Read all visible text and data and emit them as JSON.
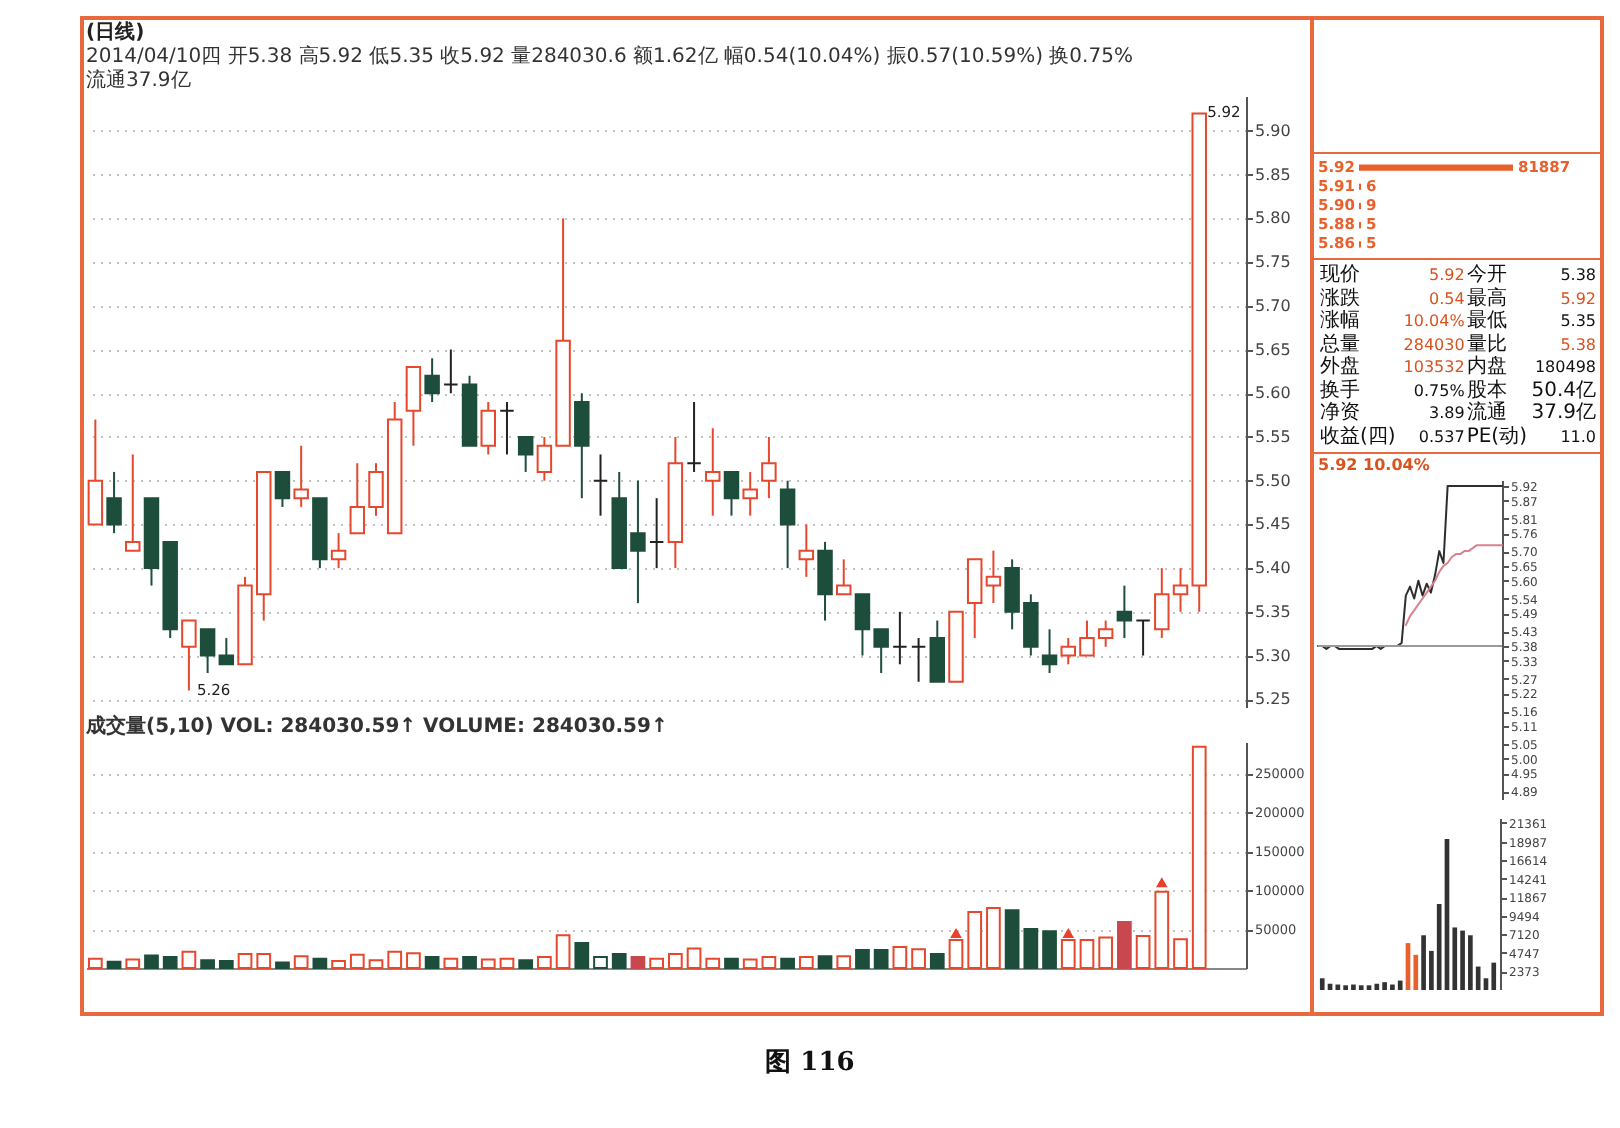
{
  "chart_data": [
    {
      "type": "candlestick",
      "title": "(日线)",
      "subtitle": "2014/04/10四 开5.38 高5.92 低5.35 收5.92 量284030.6 额1.62亿 幅0.54(10.04%) 振0.57(10.59%) 换0.75% 流通37.9亿",
      "categories": [
        null,
        null,
        null,
        null,
        null,
        null,
        null,
        null,
        null,
        null,
        null,
        null,
        null,
        null,
        null,
        null,
        null,
        null,
        null,
        null,
        null,
        null,
        null,
        null,
        null,
        null,
        null,
        null,
        null,
        null,
        null,
        null,
        null,
        null,
        null,
        null,
        null,
        null,
        null,
        null,
        null,
        null,
        null,
        null,
        null,
        null,
        null,
        null,
        null,
        null,
        null,
        null,
        null,
        null,
        null,
        null,
        null,
        null,
        null,
        null
      ],
      "ohlc": [
        [
          5.45,
          5.57,
          5.45,
          5.5
        ],
        [
          5.48,
          5.51,
          5.44,
          5.45
        ],
        [
          5.42,
          5.53,
          5.42,
          5.43
        ],
        [
          5.48,
          5.48,
          5.38,
          5.4
        ],
        [
          5.43,
          5.43,
          5.32,
          5.33
        ],
        [
          5.31,
          5.34,
          5.26,
          5.34
        ],
        [
          5.33,
          5.33,
          5.28,
          5.3
        ],
        [
          5.3,
          5.32,
          5.29,
          5.29
        ],
        [
          5.29,
          5.39,
          5.29,
          5.38
        ],
        [
          5.37,
          5.51,
          5.34,
          5.51
        ],
        [
          5.51,
          5.51,
          5.47,
          5.48
        ],
        [
          5.48,
          5.54,
          5.47,
          5.49
        ],
        [
          5.48,
          5.48,
          5.4,
          5.41
        ],
        [
          5.41,
          5.44,
          5.4,
          5.42
        ],
        [
          5.44,
          5.52,
          5.44,
          5.47
        ],
        [
          5.47,
          5.52,
          5.46,
          5.51
        ],
        [
          5.44,
          5.59,
          5.44,
          5.57
        ],
        [
          5.58,
          5.63,
          5.54,
          5.63
        ],
        [
          5.62,
          5.64,
          5.59,
          5.6
        ],
        [
          5.61,
          5.65,
          5.6,
          5.61
        ],
        [
          5.61,
          5.62,
          5.54,
          5.54
        ],
        [
          5.54,
          5.59,
          5.53,
          5.58
        ],
        [
          5.58,
          5.59,
          5.53,
          5.58
        ],
        [
          5.55,
          5.55,
          5.51,
          5.53
        ],
        [
          5.51,
          5.55,
          5.5,
          5.54
        ],
        [
          5.54,
          5.8,
          5.54,
          5.66
        ],
        [
          5.59,
          5.6,
          5.48,
          5.54
        ],
        [
          5.5,
          5.53,
          5.46,
          5.5
        ],
        [
          5.48,
          5.51,
          5.4,
          5.4
        ],
        [
          5.44,
          5.5,
          5.36,
          5.42
        ],
        [
          5.43,
          5.48,
          5.4,
          5.43
        ],
        [
          5.43,
          5.55,
          5.4,
          5.52
        ],
        [
          5.52,
          5.59,
          5.51,
          5.52
        ],
        [
          5.5,
          5.56,
          5.46,
          5.51
        ],
        [
          5.51,
          5.51,
          5.46,
          5.48
        ],
        [
          5.48,
          5.51,
          5.46,
          5.49
        ],
        [
          5.5,
          5.55,
          5.48,
          5.52
        ],
        [
          5.49,
          5.5,
          5.4,
          5.45
        ],
        [
          5.41,
          5.45,
          5.39,
          5.42
        ],
        [
          5.42,
          5.43,
          5.34,
          5.37
        ],
        [
          5.37,
          5.41,
          5.37,
          5.38
        ],
        [
          5.37,
          5.37,
          5.3,
          5.33
        ],
        [
          5.33,
          5.33,
          5.28,
          5.31
        ],
        [
          5.31,
          5.35,
          5.29,
          5.31
        ],
        [
          5.31,
          5.32,
          5.27,
          5.31
        ],
        [
          5.32,
          5.34,
          5.27,
          5.27
        ],
        [
          5.27,
          5.35,
          5.27,
          5.35
        ],
        [
          5.36,
          5.41,
          5.32,
          5.41
        ],
        [
          5.38,
          5.42,
          5.36,
          5.39
        ],
        [
          5.4,
          5.41,
          5.33,
          5.35
        ],
        [
          5.36,
          5.37,
          5.3,
          5.31
        ],
        [
          5.3,
          5.33,
          5.28,
          5.29
        ],
        [
          5.3,
          5.32,
          5.29,
          5.31
        ],
        [
          5.3,
          5.34,
          5.3,
          5.32
        ],
        [
          5.32,
          5.34,
          5.31,
          5.33
        ],
        [
          5.35,
          5.38,
          5.32,
          5.34
        ],
        [
          5.34,
          5.34,
          5.3,
          5.34
        ],
        [
          5.33,
          5.4,
          5.32,
          5.37
        ],
        [
          5.37,
          5.4,
          5.35,
          5.38
        ],
        [
          5.38,
          5.92,
          5.35,
          5.92
        ]
      ],
      "colors": [
        "#e5482d",
        "#1d4d3b",
        "#e5482d",
        "#1d4d3b",
        "#1d4d3b",
        "#e5482d",
        "#1d4d3b",
        "#1d4d3b",
        "#e5482d",
        "#e5482d",
        "#1d4d3b",
        "#e5482d",
        "#1d4d3b",
        "#e5482d",
        "#e5482d",
        "#e5482d",
        "#e5482d",
        "#e5482d",
        "#1d4d3b",
        "#222222",
        "#1d4d3b",
        "#e5482d",
        "#222222",
        "#1d4d3b",
        "#e5482d",
        "#e5482d",
        "#1d4d3b",
        "#222222",
        "#1d4d3b",
        "#1d4d3b",
        "#222222",
        "#e5482d",
        "#222222",
        "#e5482d",
        "#1d4d3b",
        "#e5482d",
        "#e5482d",
        "#1d4d3b",
        "#e5482d",
        "#1d4d3b",
        "#e5482d",
        "#1d4d3b",
        "#1d4d3b",
        "#222222",
        "#222222",
        "#1d4d3b",
        "#e5482d",
        "#e5482d",
        "#e5482d",
        "#1d4d3b",
        "#1d4d3b",
        "#1d4d3b",
        "#e5482d",
        "#e5482d",
        "#e5482d",
        "#1d4d3b",
        "#222222",
        "#e5482d",
        "#e5482d",
        "#e5482d"
      ],
      "ylim": [
        5.24,
        5.94
      ],
      "yticks": [
        5.25,
        {
          "value": 5.3,
          "label": "5.30"
        },
        5.35,
        {
          "value": 5.4,
          "label": "5.40"
        },
        5.45,
        {
          "value": 5.5,
          "label": "5.50"
        },
        5.55,
        {
          "value": 5.6,
          "label": "5.60"
        },
        5.65,
        {
          "value": 5.7,
          "label": "5.70"
        },
        5.75,
        {
          "value": 5.8,
          "label": "5.80"
        },
        5.85,
        {
          "value": 5.9,
          "label": "5.90"
        }
      ],
      "grid": "y",
      "tick_labels": "y",
      "annotations": [
        "图 116",
        "5.92",
        "5.26"
      ]
    },
    {
      "type": "bar",
      "title": "成交量(5,10) VOL: 284030.59↑ VOLUME: 284030.59↑",
      "categories": [
        null,
        null,
        null,
        null,
        null,
        null,
        null,
        null,
        null,
        null,
        null,
        null,
        null,
        null,
        null,
        null,
        null,
        null,
        null,
        null,
        null,
        null,
        null,
        null,
        null,
        null,
        null,
        null,
        null,
        null,
        null,
        null,
        null,
        null,
        null,
        null,
        null,
        null,
        null,
        null,
        null,
        null,
        null,
        null,
        null,
        null,
        null,
        null,
        null,
        null,
        null,
        null,
        null,
        null,
        null,
        null,
        null,
        null,
        null,
        null
      ],
      "series": [
        {
          "values": [
            12000,
            8000,
            11000,
            16000,
            14000,
            21000,
            10000,
            9000,
            18000,
            18000,
            7000,
            15000,
            12000,
            9000,
            17000,
            10000,
            21000,
            19000,
            14000,
            12000,
            14000,
            11000,
            12000,
            10000,
            14000,
            42000,
            32000,
            14000,
            18000,
            14000,
            12000,
            18000,
            25000,
            12000,
            12000,
            11000,
            14000,
            12000,
            14000,
            15000,
            15000,
            23000,
            23000,
            27000,
            24000,
            18000,
            36000,
            72000,
            77000,
            74000,
            50000,
            47000,
            36000,
            36000,
            39000,
            59000,
            41000,
            98000,
            37000,
            284030.59
          ],
          "colors": [
            "#e5482d",
            "#1d4d3b",
            "#e5482d",
            "#1d4d3b",
            "#1d4d3b",
            "#e5482d",
            "#1d4d3b",
            "#1d4d3b",
            "#e5482d",
            "#e5482d",
            "#1d4d3b",
            "#e5482d",
            "#1d4d3b",
            "#e5482d",
            "#e5482d",
            "#e5482d",
            "#e5482d",
            "#e5482d",
            "#1d4d3b",
            "#e5482d",
            "#1d4d3b",
            "#e5482d",
            "#e5482d",
            "#1d4d3b",
            "#e5482d",
            "#e5482d",
            "#1d4d3b",
            "#1d4d3b",
            "#1d4d3b",
            "#c9474f",
            "#e5482d",
            "#e5482d",
            "#e5482d",
            "#e5482d",
            "#1d4d3b",
            "#e5482d",
            "#e5482d",
            "#1d4d3b",
            "#e5482d",
            "#1d4d3b",
            "#e5482d",
            "#1d4d3b",
            "#1d4d3b",
            "#e5482d",
            "#e5482d",
            "#1d4d3b",
            "#e5482d",
            "#e5482d",
            "#e5482d",
            "#1d4d3b",
            "#1d4d3b",
            "#1d4d3b",
            "#e5482d",
            "#e5482d",
            "#e5482d",
            "#c9474f",
            "#e5482d",
            "#e5482d",
            "#e5482d",
            "#e5482d"
          ]
        },
        {
          "type": "scatter",
          "marker": "triangle",
          "color": "#e8402a",
          "values": [
            null,
            null,
            null,
            null,
            null,
            null,
            null,
            null,
            null,
            null,
            null,
            null,
            null,
            null,
            null,
            null,
            null,
            null,
            null,
            null,
            null,
            null,
            null,
            null,
            null,
            null,
            null,
            null,
            null,
            null,
            null,
            null,
            null,
            null,
            null,
            null,
            null,
            null,
            null,
            null,
            null,
            null,
            null,
            null,
            null,
            null,
            45000,
            null,
            null,
            null,
            null,
            null,
            45000,
            null,
            null,
            null,
            null,
            110000,
            null,
            null
          ]
        }
      ],
      "ylim": [
        0,
        290000
      ],
      "yticks": [
        50000,
        100000,
        150000,
        200000,
        250000
      ],
      "grid": "y",
      "tick_labels": "y"
    },
    {
      "type": "bar",
      "orientation": "horizontal",
      "categories": [
        "5.92",
        "5.91",
        "5.90",
        "5.88",
        "5.86"
      ],
      "values": [
        81887,
        6,
        9,
        5,
        5
      ],
      "color": "#e8602c",
      "data_labels": true
    },
    {
      "type": "other",
      "annotations": [
        "现价",
        "5.92",
        "今开",
        "5.38",
        "涨跌",
        "0.54",
        "最高",
        "5.92",
        "涨幅",
        "10.04%",
        "最低",
        "5.35",
        "总量",
        "284030",
        "量比",
        "5.38",
        "外盘",
        "103532",
        "内盘",
        "180498",
        "换手",
        "0.75%",
        "股本",
        "50.4亿",
        "净资",
        "3.89",
        "流通",
        "37.9亿",
        "收益(四)",
        "0.537",
        "PE(动)",
        "11.0"
      ]
    },
    {
      "type": "line",
      "title": "5.92 10.04%",
      "categories": [
        null,
        null,
        null,
        null,
        null,
        null,
        null,
        null,
        null,
        null,
        null,
        null,
        null,
        null,
        null,
        null,
        null,
        null,
        null,
        null,
        null,
        null,
        null,
        null,
        null,
        null,
        null,
        null,
        null,
        null,
        null,
        null,
        null,
        null,
        null,
        null,
        null,
        null,
        null,
        null,
        null,
        null,
        null,
        null,
        null
      ],
      "series": [
        {
          "color": "#2e2e2e",
          "values": [
            5.38,
            5.38,
            5.37,
            5.38,
            5.38,
            5.37,
            5.37,
            5.37,
            5.37,
            5.37,
            5.37,
            5.37,
            5.37,
            5.37,
            5.38,
            5.37,
            5.38,
            5.38,
            5.38,
            5.38,
            5.39,
            5.55,
            5.58,
            5.54,
            5.6,
            5.55,
            5.59,
            5.56,
            5.62,
            5.7,
            5.66,
            5.92,
            5.92,
            5.92,
            5.92,
            5.92,
            5.92,
            5.92,
            5.92,
            5.92,
            5.92,
            5.92,
            5.92,
            5.92,
            5.92
          ]
        },
        {
          "color": "#d9828f",
          "values": [
            null,
            null,
            null,
            null,
            null,
            null,
            null,
            null,
            null,
            null,
            null,
            null,
            null,
            null,
            null,
            null,
            null,
            null,
            null,
            null,
            null,
            5.45,
            5.48,
            5.5,
            5.52,
            5.54,
            5.56,
            5.58,
            5.6,
            5.63,
            5.65,
            5.66,
            5.68,
            5.69,
            5.69,
            5.7,
            5.7,
            5.71,
            5.72,
            5.72,
            5.72,
            5.72,
            5.72,
            5.72,
            5.72
          ]
        }
      ],
      "ylim": [
        4.86,
        5.94
      ],
      "yticks": [
        4.89,
        4.95,
        {
          "value": 5,
          "label": "5.00"
        },
        5.05,
        5.11,
        5.16,
        5.22,
        5.27,
        5.33,
        5.38,
        5.43,
        5.49,
        5.54,
        {
          "value": 5.6,
          "label": "5.60"
        },
        5.65,
        {
          "value": 5.7,
          "label": "5.70"
        },
        5.76,
        5.81,
        5.87,
        5.92
      ],
      "ref_lines": [
        {
          "axis": "y",
          "value": 5.38,
          "color": "#9a9a9a"
        }
      ],
      "tick_labels": "y"
    },
    {
      "type": "bar",
      "categories": [
        null,
        null,
        null,
        null,
        null,
        null,
        null,
        null,
        null,
        null,
        null,
        null,
        null,
        null,
        null,
        null,
        null,
        null,
        null,
        null,
        null,
        null,
        null
      ],
      "series": [
        {
          "values": [
            1500,
            800,
            700,
            600,
            700,
            600,
            600,
            800,
            1000,
            700,
            1200,
            6000,
            4500,
            7000,
            5000,
            11000,
            19300,
            8000,
            7600,
            7000,
            3000,
            1500,
            3500
          ],
          "colors": [
            "#333333",
            "#333333",
            "#333333",
            "#333333",
            "#333333",
            "#333333",
            "#333333",
            "#333333",
            "#333333",
            "#333333",
            "#333333",
            "#e8602c",
            "#e8602c",
            "#333333",
            "#333333",
            "#333333",
            "#333333",
            "#333333",
            "#333333",
            "#333333",
            "#333333",
            "#333333",
            "#333333"
          ]
        }
      ],
      "ylim": [
        0,
        22000
      ],
      "yticks": [
        2373,
        4747,
        7120,
        9494,
        11867,
        14241,
        16614,
        18987,
        21361
      ],
      "tick_labels": "y"
    }
  ]
}
